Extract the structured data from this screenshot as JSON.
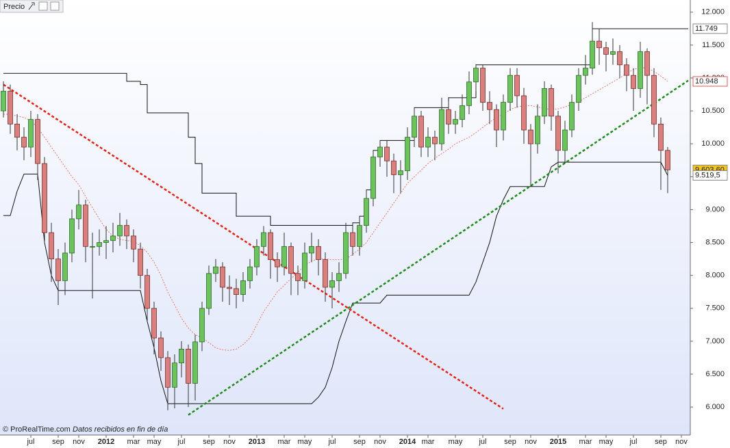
{
  "chart_data": {
    "type": "candlestick",
    "title": "Precio",
    "source": "© ProRealTime.com",
    "note": "Datos recibidos en fin de día",
    "categories": [
      null,
      null,
      null,
      null,
      "jul",
      null,
      null,
      null,
      "sep",
      null,
      null,
      "nov",
      null,
      null,
      null,
      "2012",
      null,
      null,
      null,
      "mar",
      null,
      null,
      "may",
      null,
      null,
      null,
      "jul",
      null,
      null,
      null,
      "sep",
      null,
      null,
      "nov",
      null,
      null,
      null,
      "2013",
      null,
      null,
      null,
      "mar",
      null,
      null,
      "may",
      null,
      null,
      null,
      "jul",
      null,
      null,
      null,
      "sep",
      null,
      null,
      "nov",
      null,
      null,
      null,
      "2014",
      null,
      null,
      "mar",
      null,
      null,
      null,
      "may",
      null,
      null,
      null,
      "jul",
      null,
      null,
      null,
      "sep",
      null,
      null,
      "nov",
      null,
      null,
      null,
      "2015",
      null,
      null,
      null,
      "mar",
      null,
      null,
      "may",
      null,
      null,
      null,
      "jul",
      null,
      null,
      null,
      "sep",
      null,
      null,
      "nov",
      null
    ],
    "open": [
      10500,
      10800,
      10300,
      10100,
      9950,
      10370,
      9700,
      8650,
      8250,
      7920,
      8340,
      8860,
      9070,
      8440,
      8440,
      8500,
      8530,
      8600,
      8760,
      8600,
      8400,
      8000,
      7500,
      7050,
      6750,
      6300,
      6670,
      6880,
      6360,
      6990,
      7500,
      8030,
      8130,
      7820,
      7800,
      7710,
      7920,
      8130,
      8440,
      8650,
      8240,
      8130,
      8440,
      8030,
      7920,
      8340,
      8440,
      8240,
      7820,
      7920,
      8030,
      8650,
      8440,
      8760,
      9170,
      9800,
      9950,
      9740,
      9530,
      9590,
      10100,
      10420,
      9950,
      10100,
      10000,
      10520,
      10300,
      10370,
      10580,
      10940,
      11150,
      10630,
      10520,
      10210,
      10630,
      11040,
      10730,
      10210,
      10000,
      10420,
      10840,
      10420,
      9900,
      10210,
      10630,
      11040,
      11150,
      11560,
      11460,
      11360,
      11400,
      11200,
      11040,
      10840,
      11400,
      11040,
      10300,
      9900,
      null,
      null,
      null
    ],
    "high": [
      10950,
      10900,
      10450,
      10250,
      10500,
      10450,
      9800,
      8800,
      8400,
      8500,
      9000,
      9300,
      9150,
      8650,
      8700,
      8750,
      8800,
      8950,
      8850,
      8700,
      8500,
      8100,
      7600,
      7150,
      6850,
      6800,
      7000,
      6950,
      7100,
      7600,
      8150,
      8250,
      8200,
      8000,
      7950,
      8050,
      8250,
      8550,
      8750,
      8700,
      8350,
      8650,
      8500,
      8150,
      8500,
      8650,
      8550,
      8350,
      8050,
      8200,
      8800,
      8800,
      8900,
      9300,
      9900,
      10050,
      10050,
      9850,
      9750,
      10250,
      10550,
      10500,
      10250,
      10200,
      10700,
      10650,
      10500,
      10750,
      11100,
      11200,
      11200,
      10800,
      10600,
      10750,
      11150,
      11150,
      10850,
      10300,
      10600,
      10950,
      10900,
      10500,
      10350,
      10750,
      11150,
      11350,
      11850,
      11750,
      11550,
      11600,
      11500,
      11300,
      11150,
      11550,
      11450,
      11150,
      10400,
      9950,
      null,
      null,
      null
    ],
    "low": [
      10400,
      10150,
      9900,
      9750,
      9800,
      9450,
      8500,
      7900,
      7550,
      7700,
      8200,
      8700,
      8200,
      7650,
      8300,
      8250,
      8350,
      8450,
      8400,
      8200,
      7800,
      7300,
      6800,
      6550,
      5950,
      5980,
      6450,
      6000,
      6100,
      6850,
      7400,
      7900,
      7600,
      7550,
      7500,
      7600,
      7800,
      8000,
      8300,
      7950,
      7900,
      8000,
      7700,
      7700,
      7800,
      8200,
      8000,
      7600,
      7500,
      7750,
      7950,
      8300,
      8300,
      8650,
      9050,
      9650,
      9500,
      9250,
      9250,
      9450,
      9950,
      9800,
      9800,
      9750,
      9900,
      10150,
      10150,
      10250,
      10450,
      10800,
      10500,
      10300,
      9950,
      10050,
      10500,
      10550,
      10000,
      9350,
      9850,
      10300,
      10200,
      9550,
      9700,
      10100,
      10500,
      10900,
      11050,
      11200,
      11100,
      11200,
      11000,
      10800,
      10500,
      10700,
      10600,
      10100,
      9300,
      9250,
      null,
      null,
      null
    ],
    "close": [
      10800,
      10300,
      10100,
      9950,
      10370,
      9700,
      8650,
      8250,
      7920,
      8340,
      8860,
      9070,
      8440,
      8440,
      8500,
      8530,
      8600,
      8760,
      8600,
      8400,
      8000,
      7500,
      7050,
      6750,
      6300,
      6670,
      6880,
      6360,
      6990,
      7500,
      8030,
      8130,
      7820,
      7800,
      7710,
      7920,
      8130,
      8440,
      8650,
      8240,
      8130,
      8440,
      8030,
      7920,
      8340,
      8440,
      8240,
      7820,
      7920,
      8030,
      8650,
      8440,
      8760,
      9170,
      9800,
      9950,
      9740,
      9530,
      9590,
      10100,
      10420,
      9950,
      10100,
      10000,
      10520,
      10300,
      10370,
      10580,
      10940,
      11150,
      10630,
      10520,
      10210,
      10630,
      11040,
      10730,
      10210,
      10000,
      10420,
      10840,
      10420,
      9900,
      10210,
      10630,
      11040,
      11150,
      11560,
      11460,
      11360,
      11400,
      11200,
      11040,
      10840,
      11400,
      11040,
      10300,
      9900,
      9603.6,
      null,
      null,
      null
    ],
    "up_color": "#6cc35e",
    "down_color": "#d9807f",
    "lines": [
      {
        "color": "#e8736f",
        "style": "dotted",
        "step": false,
        "values": [
          10450,
          10450,
          10420,
          10400,
          10350,
          10250,
          10100,
          9950,
          9800,
          9650,
          9500,
          9380,
          9200,
          9030,
          8860,
          8700,
          8600,
          8550,
          8530,
          8520,
          8450,
          8350,
          8200,
          8000,
          7750,
          7550,
          7350,
          7200,
          7100,
          7050,
          6980,
          6900,
          6870,
          6860,
          6880,
          6950,
          7050,
          7250,
          7450,
          7600,
          7750,
          7850,
          7950,
          8050,
          8150,
          8220,
          8250,
          8250,
          8240,
          8240,
          8250,
          8320,
          8400,
          8500,
          8650,
          8800,
          8950,
          9100,
          9250,
          9400,
          9500,
          9600,
          9700,
          9780,
          9850,
          9920,
          10000,
          10050,
          10100,
          10170,
          10250,
          10330,
          10400,
          10450,
          10520,
          10560,
          10580,
          10580,
          10560,
          10540,
          10520,
          10530,
          10560,
          10600,
          10640,
          10700,
          10760,
          10820,
          10880,
          10940,
          11000,
          11070,
          11130,
          11160,
          11150,
          11100,
          11030,
          10948,
          null,
          null,
          null
        ]
      },
      {
        "color": "#111111",
        "style": "solid",
        "step": true,
        "values": [
          11070,
          11070,
          11070,
          11070,
          11070,
          11070,
          11070,
          11070,
          11070,
          11070,
          11070,
          11070,
          11070,
          11070,
          11070,
          11070,
          11070,
          11070,
          10950,
          10950,
          10900,
          10470,
          10470,
          10470,
          10470,
          10470,
          10470,
          10100,
          9700,
          9250,
          9250,
          9250,
          9250,
          9250,
          8900,
          8900,
          8900,
          8900,
          8900,
          8760,
          8760,
          8760,
          8760,
          8760,
          8760,
          8760,
          8760,
          8760,
          8760,
          8760,
          8760,
          8800,
          8900,
          9300,
          9900,
          10050,
          10050,
          10050,
          10050,
          10050,
          10550,
          10550,
          10550,
          10550,
          10550,
          10700,
          10700,
          10700,
          10700,
          11200,
          11200,
          11200,
          11200,
          11200,
          11200,
          11200,
          11200,
          11200,
          11200,
          11200,
          11200,
          11200,
          11200,
          11200,
          11200,
          11200,
          11749,
          11749,
          11749,
          11749,
          11749,
          11749,
          11749,
          11749,
          11749,
          11749,
          11749,
          11749,
          11749,
          11749,
          11749
        ]
      },
      {
        "color": "#111111",
        "style": "solid",
        "step": false,
        "values": [
          8910,
          8910,
          9280,
          9540,
          9540,
          9540,
          8500,
          8000,
          7770,
          7770,
          7770,
          7770,
          7770,
          7770,
          7770,
          7770,
          7770,
          7770,
          7770,
          7770,
          7770,
          7300,
          6900,
          6400,
          6050,
          6050,
          6050,
          6050,
          6050,
          6050,
          6050,
          6050,
          6050,
          6050,
          6050,
          6050,
          6050,
          6050,
          6050,
          6050,
          6050,
          6050,
          6050,
          6050,
          6050,
          6050,
          6150,
          6300,
          6600,
          7000,
          7300,
          7580,
          7580,
          7580,
          7580,
          7580,
          7700,
          7700,
          7700,
          7700,
          7700,
          7700,
          7700,
          7700,
          7700,
          7700,
          7700,
          7700,
          7700,
          7900,
          8200,
          8500,
          8900,
          9150,
          9350,
          9350,
          9350,
          9350,
          9350,
          9350,
          9650,
          9720,
          9720,
          9720,
          9720,
          9720,
          9720,
          9720,
          9720,
          9720,
          9720,
          9720,
          9720,
          9720,
          9720,
          9720,
          9720,
          9519.5,
          null,
          null,
          null
        ]
      },
      {
        "color": "#e8201a",
        "style": "dashed",
        "step": false,
        "values": [
          10900,
          10833,
          10765,
          10698,
          10630,
          10563,
          10495,
          10428,
          10360,
          10293,
          10225,
          10158,
          10090,
          10023,
          9955,
          9888,
          9820,
          9753,
          9685,
          9618,
          9550,
          9483,
          9415,
          9348,
          9280,
          9213,
          9145,
          9078,
          9010,
          8943,
          8875,
          8808,
          8740,
          8673,
          8605,
          8538,
          8470,
          8403,
          8335,
          8268,
          8200,
          8133,
          8065,
          7998,
          7930,
          7863,
          7795,
          7728,
          7660,
          7593,
          7525,
          7458,
          7390,
          7323,
          7255,
          7188,
          7120,
          7053,
          6985,
          6918,
          6850,
          6783,
          6715,
          6648,
          6580,
          6513,
          6445,
          6378,
          6310,
          6243,
          6175,
          6108,
          6040,
          5973,
          null,
          null,
          null,
          null,
          null,
          null,
          null,
          null,
          null,
          null,
          null,
          null,
          null,
          null,
          null,
          null,
          null,
          null,
          null,
          null,
          null,
          null,
          null,
          null,
          null,
          null,
          null
        ]
      },
      {
        "color": "#1f8a1f",
        "style": "dashed",
        "step": false,
        "values": [
          null,
          null,
          null,
          null,
          null,
          null,
          null,
          null,
          null,
          null,
          null,
          null,
          null,
          null,
          null,
          null,
          null,
          null,
          null,
          null,
          null,
          null,
          null,
          null,
          null,
          null,
          null,
          5880,
          5950,
          6019,
          6089,
          6158,
          6228,
          6298,
          6367,
          6437,
          6506,
          6576,
          6646,
          6715,
          6785,
          6854,
          6924,
          6994,
          7063,
          7133,
          7202,
          7272,
          7342,
          7411,
          7481,
          7550,
          7620,
          7690,
          7759,
          7829,
          7898,
          7968,
          8038,
          8107,
          8177,
          8246,
          8316,
          8386,
          8455,
          8525,
          8594,
          8664,
          8734,
          8803,
          8873,
          8942,
          9012,
          9082,
          9151,
          9221,
          9290,
          9360,
          9430,
          9499,
          9569,
          9638,
          9708,
          9778,
          9847,
          9917,
          9986,
          10056,
          10126,
          10195,
          10265,
          10334,
          10404,
          10474,
          10543,
          10613,
          10682,
          10752,
          10822,
          10891,
          10961
        ]
      }
    ],
    "ylim": [
      5575,
      12185
    ],
    "yticks": [
      {
        "value": 6000,
        "label": "6.000"
      },
      {
        "value": 6500,
        "label": "6.500"
      },
      {
        "value": 7000,
        "label": "7.000"
      },
      {
        "value": 7500,
        "label": "7.500"
      },
      {
        "value": 8000,
        "label": "8.000"
      },
      {
        "value": 8500,
        "label": "8.500"
      },
      {
        "value": 9000,
        "label": "9.000"
      },
      {
        "value": 9500,
        "label": "9.500"
      },
      {
        "value": 10000,
        "label": "10.000"
      },
      {
        "value": 10500,
        "label": "10.500"
      },
      {
        "value": 11000,
        "label": "11.000"
      },
      {
        "value": 11500,
        "label": "11.500"
      },
      {
        "value": 12000,
        "label": "12.000"
      }
    ],
    "price_labels": [
      {
        "value": 11749,
        "label": "11.749",
        "color": "#222222",
        "background": "#ffffff"
      },
      {
        "value": 10948,
        "label": "10.948",
        "color": "#e05a5a",
        "background": "#ffffff"
      },
      {
        "value": 9603.6,
        "label": "9.603,60",
        "color": "#222222",
        "background": "#f4c51c"
      },
      {
        "value": 9519.5,
        "label": "9.519,5",
        "color": "#222222",
        "background": "#ffffff"
      }
    ]
  }
}
